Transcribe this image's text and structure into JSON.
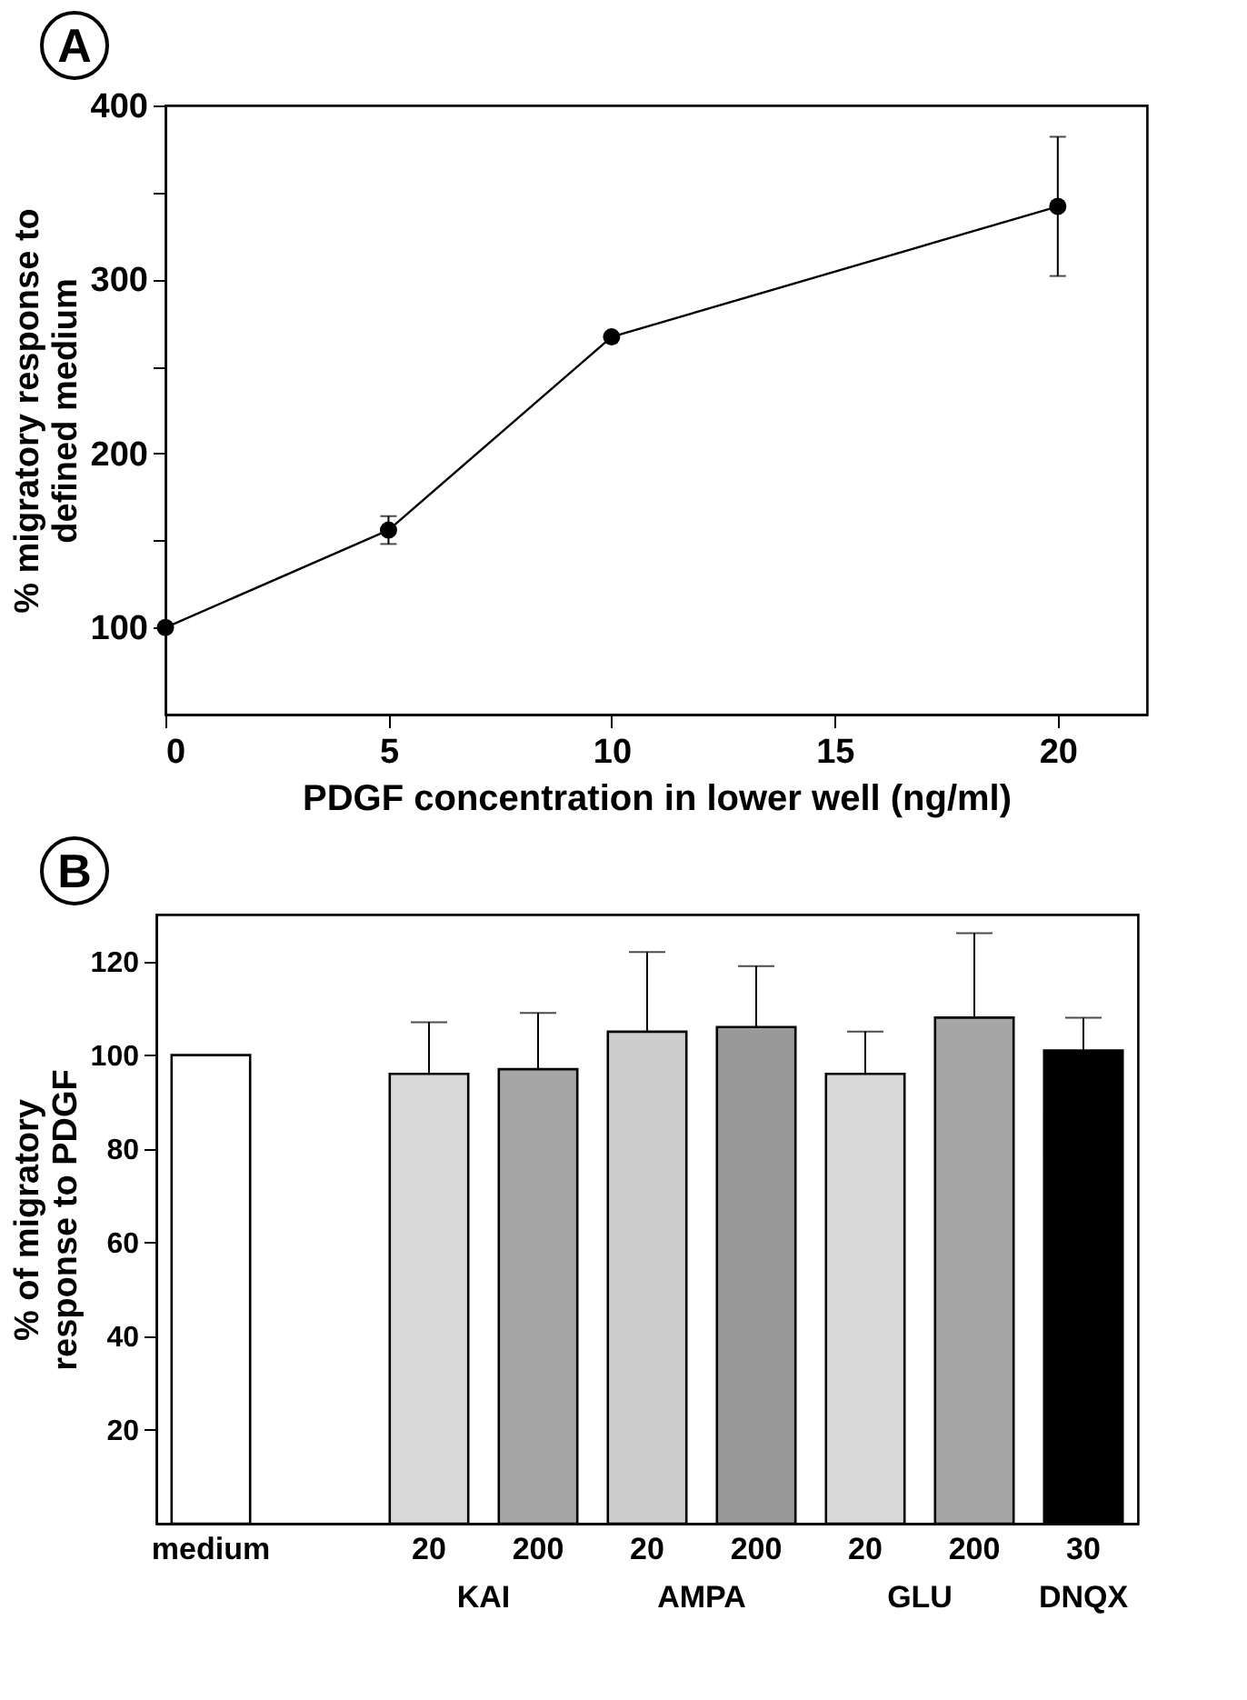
{
  "chart_data": [
    {
      "type": "line",
      "title": "A",
      "xlabel": "PDGF concentration in lower well (ng/ml)",
      "ylabel": "% migratory response to\ndefined medium",
      "x": [
        0,
        5,
        10,
        20
      ],
      "series": [
        {
          "color": "#000000",
          "values": [
            100,
            156,
            267,
            342
          ],
          "errors": [
            null,
            8,
            null,
            40
          ]
        }
      ],
      "xlim": [
        0,
        22
      ],
      "xticks": [
        0,
        5,
        10,
        15,
        20
      ],
      "ylim": [
        50,
        400
      ],
      "yticks": [
        100,
        {
          "value": 150,
          "label": null
        },
        200,
        {
          "value": 250,
          "label": null
        },
        300,
        {
          "value": 350,
          "label": null
        },
        400
      ],
      "marker": "circle",
      "line_style": "solid",
      "grid": false
    },
    {
      "type": "bar",
      "title": "B",
      "ylabel": "% of migratory\nresponse to PDGF",
      "categories": [
        "medium",
        null,
        "20",
        "200",
        "20",
        "200",
        "20",
        "200",
        "30"
      ],
      "values": [
        100,
        null,
        96,
        97,
        105,
        106,
        96,
        108,
        101
      ],
      "errors": [
        null,
        null,
        [
          96,
          107
        ],
        [
          97,
          109
        ],
        [
          105,
          122
        ],
        [
          106,
          119
        ],
        [
          96,
          105
        ],
        [
          108,
          126
        ],
        [
          101,
          108
        ]
      ],
      "colors": [
        "#ffffff",
        "#ffffff",
        "#d9d9d9",
        "#a6a6a6",
        "#cccccc",
        "#999999",
        "#d9d9d9",
        "#a6a6a6",
        "#000000"
      ],
      "ylim": [
        0,
        130
      ],
      "yticks": [
        20,
        40,
        60,
        80,
        100,
        120
      ],
      "annotations": [
        "KAI",
        "AMPA",
        "GLU",
        "DNQX"
      ],
      "grid": false
    }
  ]
}
